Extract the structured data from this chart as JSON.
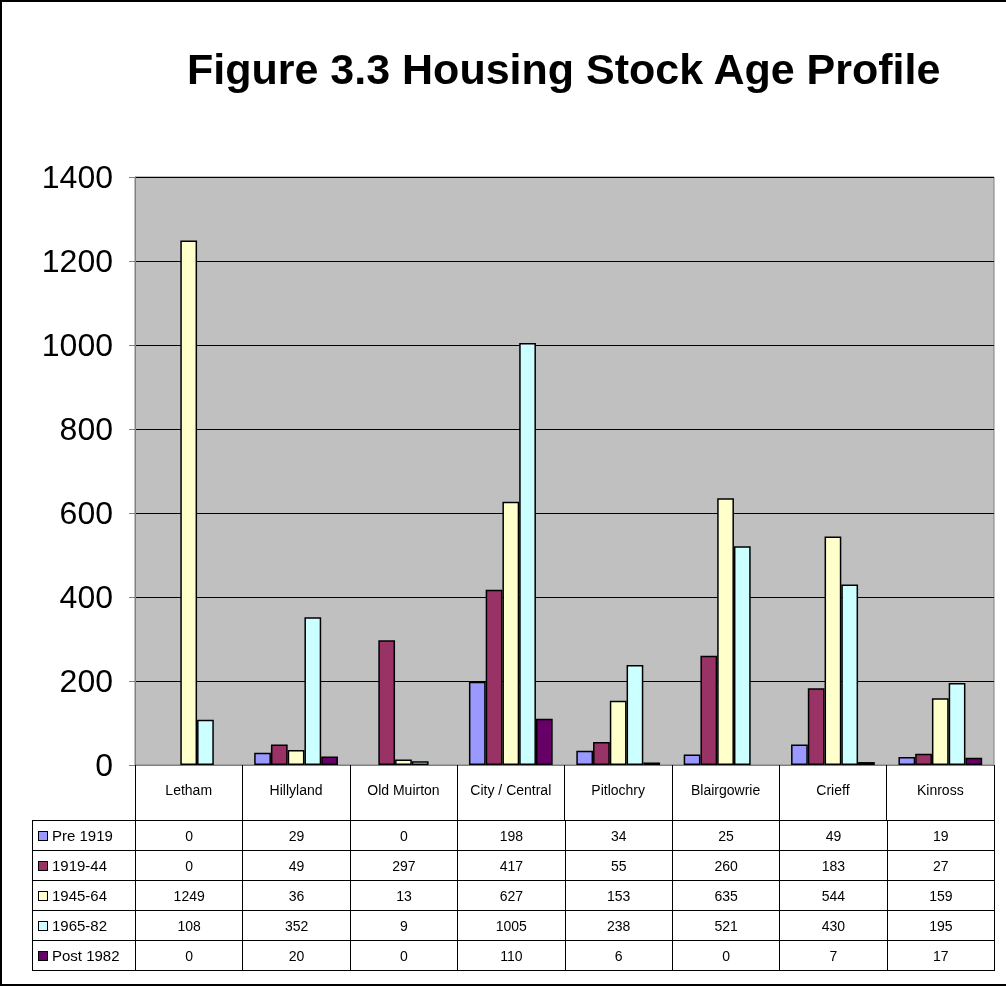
{
  "chart_data": {
    "type": "bar",
    "title": "Figure 3.3 Housing Stock Age Profile",
    "categories": [
      "Letham",
      "Hillyland",
      "Old Muirton",
      "City / Central",
      "Pitlochry",
      "Blairgowrie",
      "Crieff",
      "Kinross"
    ],
    "series": [
      {
        "name": "Pre 1919",
        "color": "#9999ff",
        "values": [
          0,
          29,
          0,
          198,
          34,
          25,
          49,
          19
        ]
      },
      {
        "name": "1919-44",
        "color": "#993366",
        "values": [
          0,
          49,
          297,
          417,
          55,
          260,
          183,
          27
        ]
      },
      {
        "name": "1945-64",
        "color": "#ffffcc",
        "values": [
          1249,
          36,
          13,
          627,
          153,
          635,
          544,
          159
        ]
      },
      {
        "name": "1965-82",
        "color": "#ccffff",
        "values": [
          108,
          352,
          9,
          1005,
          238,
          521,
          430,
          195
        ]
      },
      {
        "name": "Post 1982",
        "color": "#660066",
        "values": [
          0,
          20,
          0,
          110,
          6,
          0,
          7,
          17
        ]
      }
    ],
    "ylim": [
      0,
      1400
    ],
    "yticks": [
      0,
      200,
      400,
      600,
      800,
      1000,
      1200,
      1400
    ],
    "grid": "y",
    "legend": "bottom left",
    "data_labels": true
  }
}
